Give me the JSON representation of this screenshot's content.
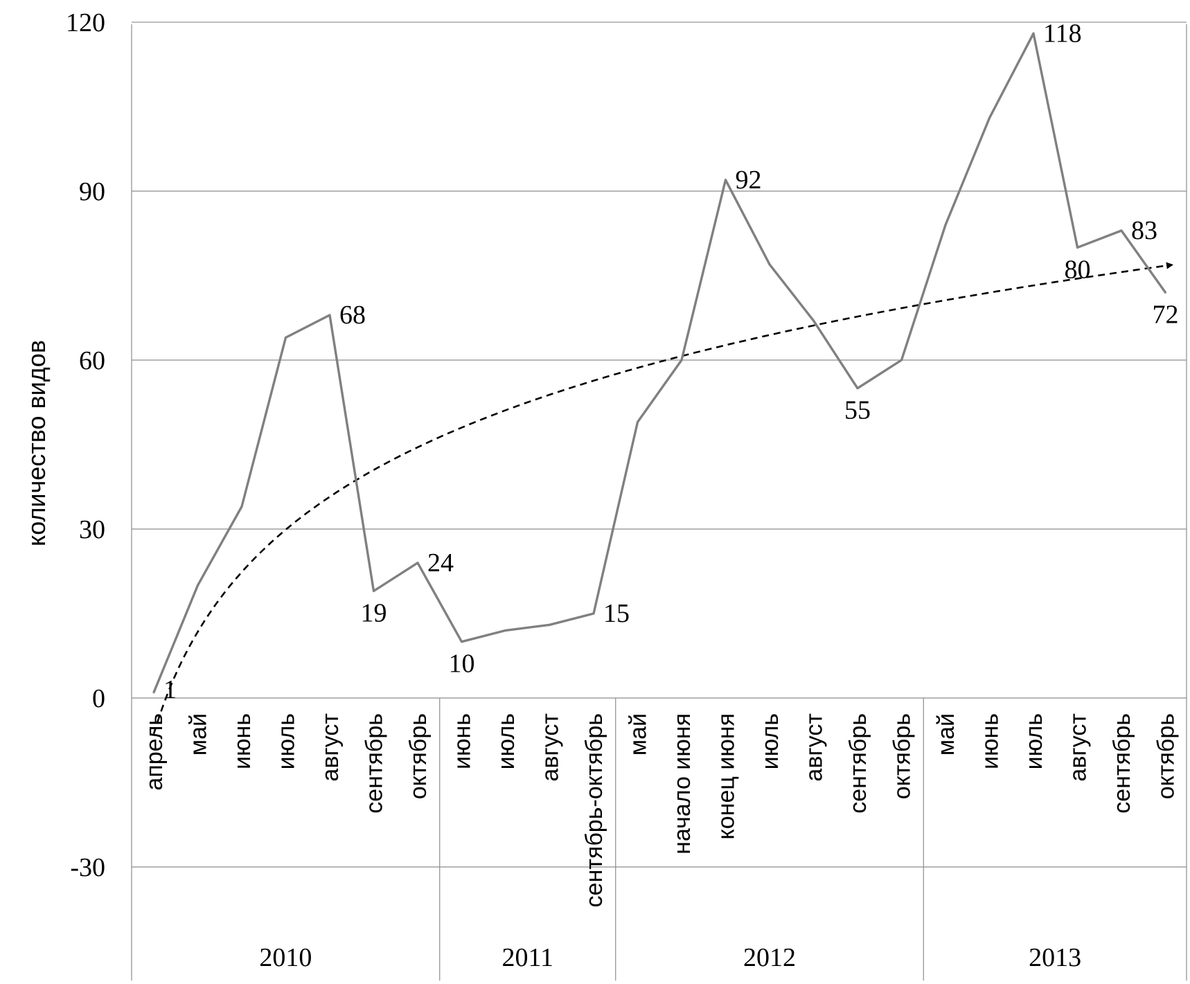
{
  "chart_data": {
    "type": "line",
    "title": "",
    "xlabel": "",
    "ylabel": "количество видов",
    "ylim": [
      -50,
      120
    ],
    "y_ticks": [
      -30,
      0,
      30,
      60,
      90,
      120
    ],
    "y_tick_labels": [
      "-30",
      "0",
      "30",
      "60",
      "90",
      "120"
    ],
    "grid": true,
    "groups": [
      {
        "label": "2010",
        "count": 7
      },
      {
        "label": "2011",
        "count": 4
      },
      {
        "label": "2012",
        "count": 7
      },
      {
        "label": "2013",
        "count": 6
      }
    ],
    "categories": [
      "апрель",
      "май",
      "июнь",
      "июль",
      "август",
      "сентябрь",
      "октябрь",
      "июнь",
      "июль",
      "август",
      "сентябрь-октябрь",
      "май",
      "начало июня",
      "конец июня",
      "июль",
      "август",
      "сентябрь",
      "октябрь",
      "май",
      "июнь",
      "июль",
      "август",
      "сентябрь",
      "октябрь"
    ],
    "series": [
      {
        "name": "",
        "color": "#808080",
        "values": [
          1,
          20,
          34,
          64,
          68,
          19,
          24,
          10,
          12,
          13,
          15,
          49,
          60,
          92,
          77,
          67,
          55,
          60,
          84,
          103,
          118,
          80,
          83,
          72
        ],
        "data_labels": [
          "1",
          "",
          "",
          "",
          "68",
          "19",
          "24",
          "10",
          "",
          "",
          "15",
          "",
          "",
          "92",
          "",
          "",
          "55",
          "",
          "",
          "",
          "118",
          "80",
          "83",
          "72"
        ]
      }
    ],
    "trendline": {
      "type": "logarithmic",
      "style": "dashed",
      "color": "#000000",
      "arrow": true
    }
  }
}
